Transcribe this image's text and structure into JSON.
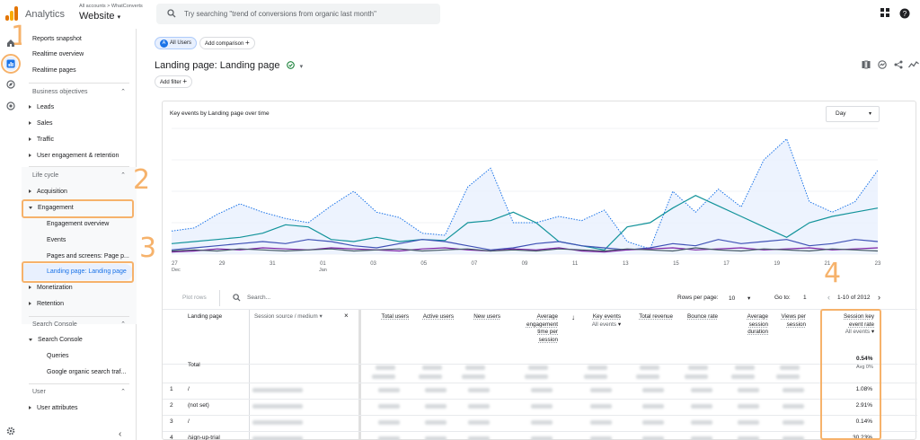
{
  "header": {
    "app_name": "Analytics",
    "breadcrumb": "All accounts > WhatConverts",
    "property": "Website",
    "search_placeholder": "Try searching \"trend of conversions from organic last month\""
  },
  "annotations": [
    "1",
    "2",
    "3",
    "4"
  ],
  "sidebar": {
    "top_items": [
      "Reports snapshot",
      "Realtime overview",
      "Realtime pages"
    ],
    "business_objectives": {
      "title": "Business objectives",
      "items": [
        "Leads",
        "Sales",
        "Traffic",
        "User engagement & retention"
      ]
    },
    "life_cycle": {
      "title": "Life cycle",
      "acquisition": "Acquisition",
      "engagement": "Engagement",
      "engagement_children": [
        "Engagement overview",
        "Events",
        "Pages and screens: Page p...",
        "Landing page: Landing page"
      ],
      "monetization": "Monetization",
      "retention": "Retention"
    },
    "search_console": {
      "title": "Search Console",
      "group": "Search Console",
      "items": [
        "Queries",
        "Google organic search traf..."
      ]
    },
    "user": {
      "title": "User",
      "items": [
        "User attributes"
      ]
    }
  },
  "main": {
    "segment_chip": "All Users",
    "segment_avatar": "A",
    "add_comparison": "Add comparison",
    "page_title": "Landing page: Landing page",
    "add_filter": "Add filter",
    "chart_heading": "Key events by Landing page over time",
    "granularity": "Day",
    "plot_rows": "Plot rows",
    "table_search_placeholder": "Search...",
    "rows_per_page_label": "Rows per page:",
    "rows_per_page": "10",
    "goto_label": "Go to:",
    "goto_value": "1",
    "pagination": "1-10 of 2012",
    "table": {
      "columns": [
        "Landing page",
        "Session source / medium",
        "Total users",
        "Active users",
        "New users",
        "Average engagement time per session",
        "Key events",
        "Total revenue",
        "Bounce rate",
        "Average session duration",
        "Views per session",
        "Session key event rate"
      ],
      "key_events_sub": "All events",
      "rate_sub": "All events",
      "total_label": "Total",
      "total_rate": "0.54%",
      "total_rate_avg": "Avg 0%",
      "rows": [
        {
          "num": "1",
          "page": "/",
          "rate": "1.08%"
        },
        {
          "num": "2",
          "page": "(not set)",
          "rate": "2.91%"
        },
        {
          "num": "3",
          "page": "/",
          "rate": "0.14%"
        },
        {
          "num": "4",
          "page": "/sign-up-trial",
          "rate": "30.23%"
        }
      ]
    }
  },
  "chart_data": {
    "type": "line",
    "title": "Key events by Landing page over time",
    "x_tick_labels": [
      "27 Dec",
      "29",
      "31",
      "01 Jan",
      "03",
      "05",
      "07",
      "09",
      "11",
      "13",
      "15",
      "17",
      "19",
      "21",
      "23"
    ],
    "series": [
      {
        "values": [
          22,
          25,
          38,
          48,
          40,
          34,
          30,
          46,
          60,
          40,
          35,
          20,
          18,
          64,
          82,
          30,
          30,
          36,
          32,
          42,
          12,
          5,
          60,
          40,
          62,
          45,
          90,
          110,
          50,
          40,
          50,
          80
        ]
      },
      {
        "values": [
          10,
          12,
          14,
          16,
          20,
          28,
          26,
          14,
          12,
          16,
          12,
          14,
          13,
          30,
          32,
          40,
          30,
          12,
          8,
          4,
          26,
          30,
          44,
          56,
          46,
          36,
          26,
          16,
          30,
          36,
          40,
          44
        ]
      },
      {
        "values": [
          4,
          6,
          8,
          10,
          12,
          10,
          14,
          12,
          8,
          6,
          10,
          14,
          12,
          8,
          4,
          6,
          10,
          12,
          8,
          6,
          4,
          6,
          10,
          8,
          14,
          10,
          12,
          14,
          8,
          10,
          14,
          12
        ]
      },
      {
        "values": [
          2,
          3,
          5,
          4,
          6,
          5,
          4,
          6,
          5,
          4,
          3,
          5,
          6,
          4,
          3,
          5,
          4,
          6,
          3,
          2,
          4,
          5,
          6,
          4,
          5,
          6,
          4,
          5,
          6,
          4,
          5,
          6
        ]
      },
      {
        "values": [
          3,
          4,
          3,
          5,
          4,
          3,
          4,
          5,
          3,
          4,
          5,
          3,
          4,
          5,
          3,
          4,
          3,
          5,
          4,
          3,
          5,
          4,
          3,
          6,
          4,
          3,
          5,
          4,
          3,
          5,
          4,
          3
        ]
      }
    ],
    "colors": [
      "#1a73e8",
      "#12939a",
      "#3f51b5",
      "#7b1fa2",
      "#455a64"
    ],
    "ylim": [
      0,
      120
    ],
    "grid": true
  },
  "colors": {
    "accent": "#1a73e8",
    "annotation": "#f6b26b",
    "selected_bg": "#e8f0fe"
  }
}
